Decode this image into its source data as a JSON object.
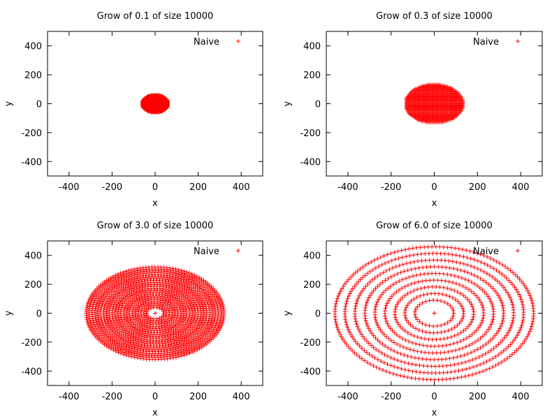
{
  "chart_data": [
    {
      "type": "scatter",
      "title": "Grow of 0.1 of size 10000",
      "xlabel": "x",
      "ylabel": "y",
      "xlim": [
        -500,
        500
      ],
      "ylim": [
        -500,
        500
      ],
      "xticks": [
        -400,
        -200,
        0,
        200,
        400
      ],
      "yticks": [
        -400,
        -200,
        0,
        200,
        400
      ],
      "grid": false,
      "legend": "top-right",
      "series": [
        {
          "name": "Naive",
          "color": "#ff0000",
          "marker": "+",
          "pattern": "filled-disc",
          "rx": 62,
          "ry": 62,
          "rings": 0,
          "spacing": 4,
          "hole": 0,
          "center_point": false
        }
      ]
    },
    {
      "type": "scatter",
      "title": "Grow of 0.3 of size 10000",
      "xlabel": "x",
      "ylabel": "y",
      "xlim": [
        -500,
        500
      ],
      "ylim": [
        -500,
        500
      ],
      "xticks": [
        -400,
        -200,
        0,
        200,
        400
      ],
      "yticks": [
        -400,
        -200,
        0,
        200,
        400
      ],
      "grid": false,
      "legend": "top-right",
      "series": [
        {
          "name": "Naive",
          "color": "#ff0000",
          "marker": "+",
          "pattern": "filled-disc",
          "rx": 135,
          "ry": 135,
          "rings": 0,
          "spacing": 7,
          "hole": 0,
          "center_point": false
        }
      ]
    },
    {
      "type": "scatter",
      "title": "Grow of 3.0 of size 10000",
      "xlabel": "x",
      "ylabel": "y",
      "xlim": [
        -500,
        500
      ],
      "ylim": [
        -500,
        500
      ],
      "xticks": [
        -400,
        -200,
        0,
        200,
        400
      ],
      "yticks": [
        -400,
        -200,
        0,
        200,
        400
      ],
      "grid": false,
      "legend": "top-right",
      "series": [
        {
          "name": "Naive",
          "color": "#ff0000",
          "marker": "+",
          "pattern": "rings",
          "rx": 320,
          "ry": 320,
          "rings": 22,
          "spacing": 14,
          "hole": 40,
          "center_point": true
        }
      ]
    },
    {
      "type": "scatter",
      "title": "Grow of 6.0 of size 10000",
      "xlabel": "x",
      "ylabel": "y",
      "xlim": [
        -500,
        500
      ],
      "ylim": [
        -500,
        500
      ],
      "xticks": [
        -400,
        -200,
        0,
        200,
        400
      ],
      "yticks": [
        -400,
        -200,
        0,
        200,
        400
      ],
      "grid": false,
      "legend": "top-right",
      "series": [
        {
          "name": "Naive",
          "color": "#ff0000",
          "marker": "+",
          "pattern": "rings",
          "rx": 460,
          "ry": 460,
          "rings": 9,
          "spacing": 18,
          "hole": 90,
          "center_point": true
        }
      ]
    }
  ]
}
